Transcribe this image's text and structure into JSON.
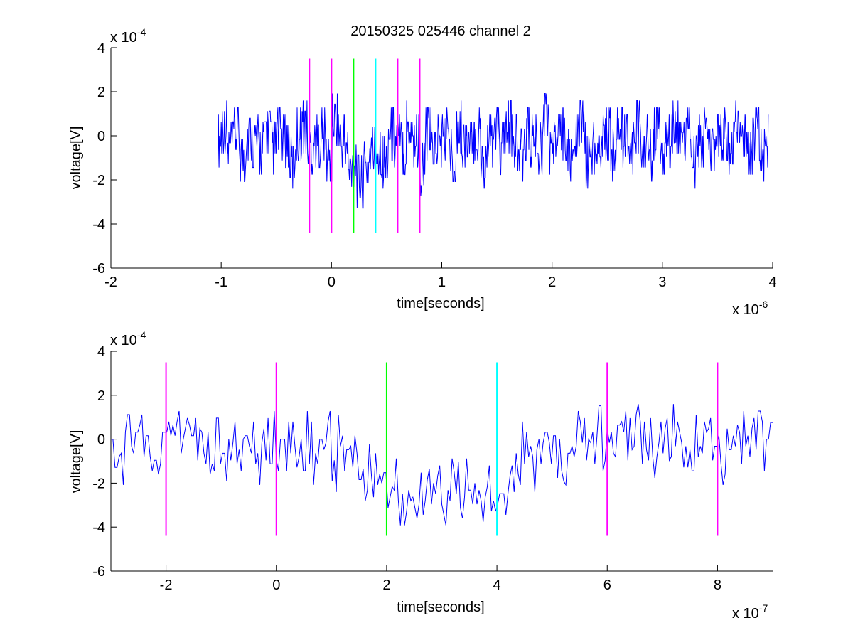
{
  "figure_title": "20150325 025446 channel 2",
  "chart_data": [
    {
      "type": "line",
      "title": "20150325 025446 channel 2",
      "xlabel": "time[seconds]",
      "ylabel": "voltage[V]",
      "x_exponent_label": "x 10",
      "x_exponent_power": "-6",
      "y_exponent_label": "x 10",
      "y_exponent_power": "-4",
      "x_tick_values": [
        -2,
        -1,
        0,
        1,
        2,
        3,
        4
      ],
      "x_tick_labels": [
        "-2",
        "-1",
        "0",
        "1",
        "2",
        "3",
        "4"
      ],
      "y_tick_values": [
        -6,
        -4,
        -2,
        0,
        2,
        4
      ],
      "y_tick_labels": [
        "-6",
        "-4",
        "-2",
        "0",
        "2",
        "4"
      ],
      "xlim": [
        -2,
        4
      ],
      "ylim": [
        -6,
        4
      ],
      "grid": false,
      "series_color": "#0000ff",
      "signal_x_range": [
        -1.03,
        3.96
      ],
      "signal_dip_between": [
        0.15,
        0.4
      ],
      "signal": [
        0.0,
        1.6,
        -0.8,
        0.8,
        -1.6,
        0.8,
        0.0,
        -0.8,
        1.6,
        -0.8,
        0.8,
        0.0,
        -2.4,
        0.8,
        1.6,
        -0.8,
        0.0,
        0.8,
        -1.6,
        2.4,
        0.0,
        -0.8,
        0.8,
        -1.6,
        0.0,
        1.6,
        -0.8,
        -2.4,
        0.8,
        0.0,
        -0.8,
        1.6,
        0.0,
        -3.2,
        0.8,
        -0.8,
        0.0,
        0.8,
        -1.6,
        1.6,
        0.0,
        -0.8,
        0.8,
        -2.4,
        0.0,
        0.8,
        -0.8,
        1.6,
        0.0,
        -1.6,
        0.8,
        0.0,
        -0.8,
        2.4,
        -0.8,
        0.0,
        0.8,
        -1.6,
        0.0,
        1.6,
        -2.4,
        -0.8,
        0.0,
        0.8,
        -1.6,
        0.8,
        0.0,
        -0.8,
        1.6,
        0.0,
        -1.6,
        0.8,
        -0.8,
        0.0,
        1.6,
        -0.8,
        0.8,
        -2.4,
        0.0,
        0.8,
        -1.6,
        0.0,
        0.8,
        -0.8,
        1.6,
        0.0,
        -0.8,
        0.8,
        -1.6,
        0.0
      ],
      "markers": [
        {
          "x": -0.2,
          "color": "#ff00ff",
          "y_range": [
            -4.4,
            3.5
          ]
        },
        {
          "x": 0.0,
          "color": "#ff00ff",
          "y_range": [
            -4.4,
            3.5
          ]
        },
        {
          "x": 0.2,
          "color": "#00ff00",
          "y_range": [
            -4.4,
            3.5
          ]
        },
        {
          "x": 0.4,
          "color": "#00ffff",
          "y_range": [
            -4.4,
            3.5
          ]
        },
        {
          "x": 0.6,
          "color": "#ff00ff",
          "y_range": [
            -4.4,
            3.5
          ]
        },
        {
          "x": 0.8,
          "color": "#ff00ff",
          "y_range": [
            -4.4,
            3.5
          ]
        }
      ]
    },
    {
      "type": "line",
      "title": "",
      "xlabel": "time[seconds]",
      "ylabel": "voltage[V]",
      "x_exponent_label": "x 10",
      "x_exponent_power": "-7",
      "y_exponent_label": "x 10",
      "y_exponent_power": "-4",
      "x_tick_values": [
        -2,
        0,
        2,
        4,
        6,
        8
      ],
      "x_tick_labels": [
        "-2",
        "0",
        "2",
        "4",
        "6",
        "8"
      ],
      "y_tick_values": [
        -6,
        -4,
        -2,
        0,
        2,
        4
      ],
      "y_tick_labels": [
        "-6",
        "-4",
        "-2",
        "0",
        "2",
        "4"
      ],
      "xlim": [
        -3,
        9
      ],
      "ylim": [
        -6,
        4
      ],
      "grid": false,
      "series_color": "#0000ff",
      "signal_x_range": [
        -3,
        9
      ],
      "signal_dip_between": [
        1.5,
        4.3
      ],
      "signal": [
        0.0,
        -0.8,
        -1.6,
        1.6,
        0.8,
        1.6,
        -0.8,
        0.0,
        -1.6,
        0.8,
        1.6,
        0.8,
        2.4,
        -0.8,
        0.0,
        0.8,
        -1.6,
        0.0,
        0.8,
        -2.4,
        0.8,
        0.0,
        -0.8,
        0.8,
        -1.6,
        0.0,
        0.8,
        -2.4,
        0.0,
        0.8,
        -0.8,
        0.0,
        0.8,
        -1.6,
        0.0,
        0.8,
        -2.4,
        1.6,
        0.0,
        -0.8,
        0.8,
        -1.6,
        0.0,
        1.4,
        -0.8,
        -2.4,
        -1.6,
        -3.2,
        -4.0,
        -2.4,
        -3.2,
        -1.6,
        -0.8,
        -2.4,
        -3.2,
        -1.6,
        -0.8,
        -2.4,
        -1.6,
        -3.2,
        -4.0,
        -2.4,
        -1.6,
        -0.8,
        -3.2,
        -2.4,
        -1.6,
        0.8,
        -0.8,
        -2.4,
        -1.6,
        0.8,
        -0.8,
        -2.4,
        -4.0,
        -0.8,
        0.8,
        0.0,
        0.8,
        1.4,
        0.0,
        0.8,
        -0.8,
        0.8,
        0.0,
        1.6,
        0.8,
        0.0,
        -0.8,
        0.8,
        0.0,
        1.6,
        0.8,
        -0.8,
        0.0,
        1.6,
        0.8,
        0.0,
        -0.8,
        -1.6,
        0.0,
        1.6,
        0.8,
        -0.8,
        0.0,
        0.8,
        0.0,
        -0.5
      ],
      "markers": [
        {
          "x": -2,
          "color": "#ff00ff",
          "y_range": [
            -4.4,
            3.5
          ]
        },
        {
          "x": 0,
          "color": "#ff00ff",
          "y_range": [
            -4.4,
            3.5
          ]
        },
        {
          "x": 2,
          "color": "#00ff00",
          "y_range": [
            -4.4,
            3.5
          ]
        },
        {
          "x": 4,
          "color": "#00ffff",
          "y_range": [
            -4.4,
            3.5
          ]
        },
        {
          "x": 6,
          "color": "#ff00ff",
          "y_range": [
            -4.4,
            3.5
          ]
        },
        {
          "x": 8,
          "color": "#ff00ff",
          "y_range": [
            -4.4,
            3.5
          ]
        }
      ]
    }
  ]
}
